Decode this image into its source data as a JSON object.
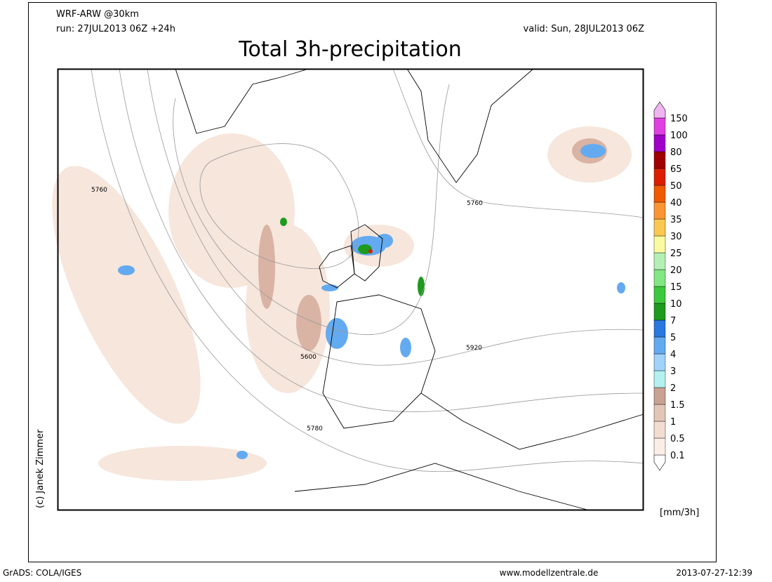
{
  "header": {
    "model": "WRF-ARW @30km",
    "run": "run: 27JUL2013 06Z +24h",
    "valid": "valid: Sun, 28JUL2013 06Z",
    "title": "Total 3h-precipitation"
  },
  "map": {
    "credit": "(c) Janek Zimmer",
    "contour_labels": [
      "5760",
      "5760",
      "5600",
      "5780",
      "5920"
    ]
  },
  "legend": {
    "labels": [
      "0.1",
      "0.5",
      "1",
      "1.5",
      "2",
      "3",
      "4",
      "5",
      "7",
      "10",
      "15",
      "20",
      "25",
      "30",
      "35",
      "40",
      "50",
      "65",
      "80",
      "100",
      "150"
    ],
    "colors": [
      "#ffffff",
      "#fbeee6",
      "#f2ddd0",
      "#e2c6b8",
      "#c9a294",
      "#b4f0f0",
      "#a0d2fa",
      "#64aaf0",
      "#2878e0",
      "#1e9a1e",
      "#3cc83c",
      "#82e682",
      "#b4f0b4",
      "#fafaa0",
      "#fac850",
      "#fa9632",
      "#f05a00",
      "#dc1e00",
      "#a00000",
      "#a000c8",
      "#e040e0",
      "#f0b4f0"
    ],
    "unit": "[mm/3h]"
  },
  "footer": {
    "left": "GrADS: COLA/IGES",
    "center": "www.modellzentrale.de",
    "right": "2013-07-27-12:39"
  }
}
